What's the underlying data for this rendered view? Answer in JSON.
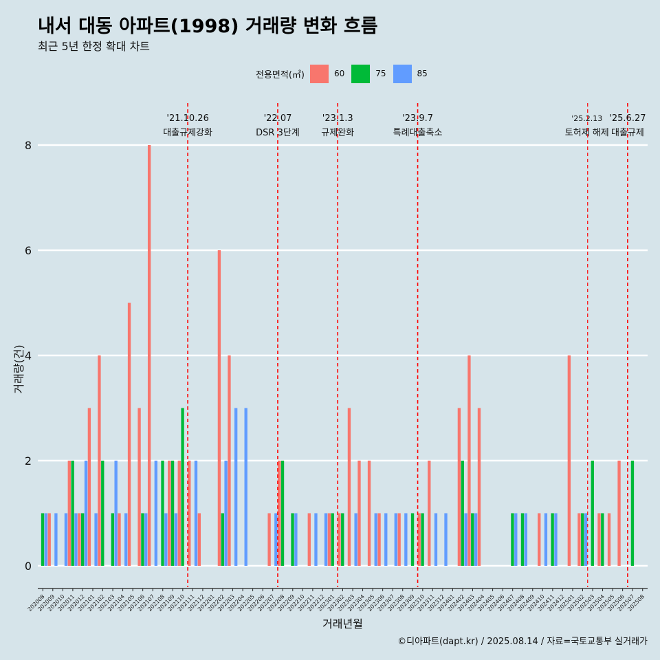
{
  "title": "내서 대동 아파트(1998) 거래량 변화 흐름",
  "subtitle": "최근 5년 한정 확대 차트",
  "caption": "©디아파트(dapt.kr) / 2025.08.14 / 자료=국토교통부 실거래가",
  "colors": {
    "background": "#d6e4ea",
    "s60": "#f8766d",
    "s75": "#00ba38",
    "s85": "#619cff",
    "event_line": "#ff0000",
    "grid": "#ffffff"
  },
  "chart_data": {
    "type": "bar",
    "xlabel": "거래년월",
    "ylabel": "거래량(건)",
    "ylim": [
      0,
      8
    ],
    "yticks": [
      0,
      2,
      4,
      6,
      8
    ],
    "legend_title": "전용면적(㎡)",
    "legend_position": "top",
    "grid": "horizontal major lines",
    "categories": [
      "202008",
      "202009",
      "202010",
      "202011",
      "202012",
      "202101",
      "202102",
      "202103",
      "202104",
      "202105",
      "202106",
      "202107",
      "202108",
      "202109",
      "202110",
      "202111",
      "202112",
      "202201",
      "202202",
      "202203",
      "202204",
      "202205",
      "202206",
      "202207",
      "202208",
      "202209",
      "202210",
      "202211",
      "202212",
      "202301",
      "202302",
      "202303",
      "202304",
      "202305",
      "202306",
      "202307",
      "202308",
      "202309",
      "202310",
      "202311",
      "202312",
      "202401",
      "202402",
      "202403",
      "202404",
      "202405",
      "202406",
      "202407",
      "202408",
      "202409",
      "202410",
      "202411",
      "202412",
      "202501",
      "202502",
      "202503",
      "202504",
      "202505",
      "202506",
      "202507",
      "202508"
    ],
    "series": [
      {
        "name": "60",
        "values": [
          0,
          1,
          0,
          2,
          1,
          3,
          4,
          0,
          1,
          5,
          3,
          8,
          0,
          2,
          2,
          2,
          1,
          0,
          6,
          4,
          0,
          0,
          0,
          1,
          2,
          0,
          0,
          1,
          0,
          1,
          1,
          3,
          2,
          2,
          1,
          0,
          1,
          0,
          1,
          2,
          0,
          0,
          3,
          4,
          3,
          0,
          0,
          0,
          0,
          0,
          1,
          0,
          0,
          4,
          1,
          0,
          1,
          1,
          2,
          0,
          0
        ]
      },
      {
        "name": "75",
        "values": [
          1,
          0,
          0,
          2,
          1,
          0,
          2,
          1,
          0,
          0,
          1,
          0,
          2,
          2,
          3,
          0,
          0,
          0,
          1,
          0,
          0,
          0,
          0,
          0,
          2,
          1,
          0,
          0,
          0,
          1,
          1,
          0,
          0,
          0,
          0,
          0,
          0,
          1,
          1,
          0,
          0,
          0,
          2,
          1,
          0,
          0,
          0,
          1,
          1,
          0,
          0,
          1,
          0,
          0,
          1,
          2,
          1,
          0,
          0,
          2,
          0
        ]
      },
      {
        "name": "85",
        "values": [
          1,
          1,
          1,
          1,
          2,
          1,
          0,
          2,
          1,
          0,
          1,
          2,
          1,
          1,
          0,
          2,
          0,
          0,
          2,
          3,
          3,
          0,
          0,
          1,
          0,
          1,
          0,
          1,
          1,
          0,
          0,
          1,
          0,
          1,
          1,
          1,
          1,
          0,
          0,
          1,
          1,
          0,
          1,
          1,
          0,
          0,
          0,
          1,
          1,
          0,
          1,
          1,
          0,
          0,
          1,
          0,
          0,
          0,
          0,
          0,
          0
        ]
      }
    ],
    "events": [
      {
        "date": "'21.10.26",
        "label": "대출규제강화",
        "after_index": 14
      },
      {
        "date": "'22.07",
        "label": "DSR 3단계",
        "after_index": 23
      },
      {
        "date": "'23.1.3",
        "label": "규제완화",
        "after_index": 29
      },
      {
        "date": "'23.9.7",
        "label": "특례대출축소",
        "after_index": 37
      },
      {
        "date": "'25.2.13",
        "label": "토허제 해제",
        "after_index": 54
      },
      {
        "date": "'25.6.27",
        "label": "대출규제",
        "after_index": 58
      }
    ]
  }
}
